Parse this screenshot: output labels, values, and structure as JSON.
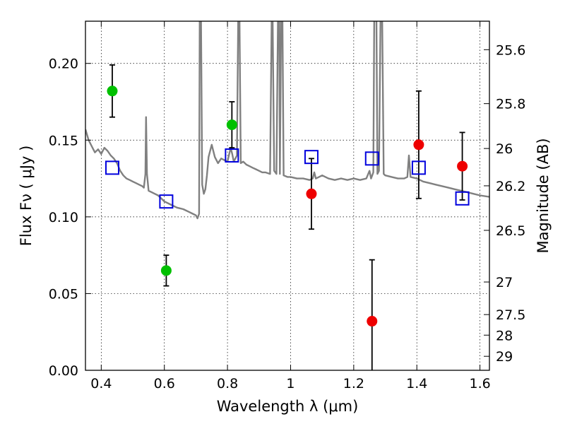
{
  "chart_data": {
    "type": "scatter",
    "title": "",
    "xlabel": "Wavelength  λ (μm)",
    "ylabel": "Flux  Fν  ( μJy )",
    "y2label": "Magnitude (AB)",
    "xlim": [
      0.35,
      1.63
    ],
    "ylim": [
      0.0,
      0.2275
    ],
    "grid": true,
    "x_ticks": [
      0.4,
      0.6,
      0.8,
      1.0,
      1.2,
      1.4,
      1.6
    ],
    "x_tick_labels": [
      "0.4",
      "0.6",
      "0.8",
      "1",
      "1.2",
      "1.4",
      "1.6"
    ],
    "y_ticks": [
      0.0,
      0.05,
      0.1,
      0.15,
      0.2
    ],
    "y_tick_labels": [
      "0.00",
      "0.05",
      "0.10",
      "0.15",
      "0.20"
    ],
    "y2_ticks": [
      25.6,
      25.8,
      26,
      26.2,
      26.5,
      27,
      27.5,
      28,
      29
    ],
    "y2_tick_labels": [
      "25.6",
      "25.8",
      "26",
      "26.2",
      "26.5",
      "27",
      "27.5",
      "28",
      "29"
    ],
    "series": [
      {
        "kind": "line",
        "color": "#808080",
        "points": [
          [
            0.35,
            0.157
          ],
          [
            0.36,
            0.15
          ],
          [
            0.37,
            0.146
          ],
          [
            0.38,
            0.142
          ],
          [
            0.39,
            0.144
          ],
          [
            0.4,
            0.141
          ],
          [
            0.41,
            0.145
          ],
          [
            0.42,
            0.143
          ],
          [
            0.43,
            0.14
          ],
          [
            0.44,
            0.138
          ],
          [
            0.45,
            0.135
          ],
          [
            0.46,
            0.13
          ],
          [
            0.47,
            0.127
          ],
          [
            0.48,
            0.125
          ],
          [
            0.49,
            0.124
          ],
          [
            0.5,
            0.123
          ],
          [
            0.51,
            0.122
          ],
          [
            0.52,
            0.121
          ],
          [
            0.53,
            0.12
          ],
          [
            0.535,
            0.119
          ],
          [
            0.54,
            0.128
          ],
          [
            0.542,
            0.165
          ],
          [
            0.545,
            0.128
          ],
          [
            0.55,
            0.117
          ],
          [
            0.56,
            0.116
          ],
          [
            0.57,
            0.115
          ],
          [
            0.58,
            0.114
          ],
          [
            0.59,
            0.112
          ],
          [
            0.6,
            0.11
          ],
          [
            0.62,
            0.108
          ],
          [
            0.64,
            0.106
          ],
          [
            0.66,
            0.105
          ],
          [
            0.68,
            0.103
          ],
          [
            0.69,
            0.102
          ],
          [
            0.7,
            0.101
          ],
          [
            0.705,
            0.099
          ],
          [
            0.71,
            0.102
          ],
          [
            0.712,
            0.23
          ],
          [
            0.716,
            0.23
          ],
          [
            0.72,
            0.121
          ],
          [
            0.725,
            0.115
          ],
          [
            0.73,
            0.118
          ],
          [
            0.735,
            0.127
          ],
          [
            0.74,
            0.139
          ],
          [
            0.75,
            0.147
          ],
          [
            0.76,
            0.139
          ],
          [
            0.77,
            0.135
          ],
          [
            0.78,
            0.138
          ],
          [
            0.79,
            0.137
          ],
          [
            0.8,
            0.136
          ],
          [
            0.81,
            0.145
          ],
          [
            0.815,
            0.141
          ],
          [
            0.82,
            0.136
          ],
          [
            0.83,
            0.14
          ],
          [
            0.834,
            0.23
          ],
          [
            0.838,
            0.23
          ],
          [
            0.842,
            0.135
          ],
          [
            0.85,
            0.136
          ],
          [
            0.86,
            0.134
          ],
          [
            0.87,
            0.133
          ],
          [
            0.88,
            0.132
          ],
          [
            0.89,
            0.131
          ],
          [
            0.9,
            0.13
          ],
          [
            0.91,
            0.129
          ],
          [
            0.92,
            0.129
          ],
          [
            0.935,
            0.128
          ],
          [
            0.94,
            0.23
          ],
          [
            0.943,
            0.23
          ],
          [
            0.948,
            0.13
          ],
          [
            0.955,
            0.128
          ],
          [
            0.96,
            0.23
          ],
          [
            0.964,
            0.23
          ],
          [
            0.966,
            0.128
          ],
          [
            0.97,
            0.23
          ],
          [
            0.974,
            0.23
          ],
          [
            0.978,
            0.127
          ],
          [
            0.99,
            0.126
          ],
          [
            1.0,
            0.126
          ],
          [
            1.02,
            0.125
          ],
          [
            1.04,
            0.125
          ],
          [
            1.06,
            0.124
          ],
          [
            1.07,
            0.125
          ],
          [
            1.075,
            0.129
          ],
          [
            1.08,
            0.125
          ],
          [
            1.09,
            0.126
          ],
          [
            1.1,
            0.127
          ],
          [
            1.12,
            0.125
          ],
          [
            1.14,
            0.124
          ],
          [
            1.16,
            0.125
          ],
          [
            1.18,
            0.124
          ],
          [
            1.2,
            0.125
          ],
          [
            1.22,
            0.124
          ],
          [
            1.24,
            0.125
          ],
          [
            1.25,
            0.13
          ],
          [
            1.255,
            0.125
          ],
          [
            1.262,
            0.129
          ],
          [
            1.265,
            0.23
          ],
          [
            1.272,
            0.23
          ],
          [
            1.275,
            0.128
          ],
          [
            1.28,
            0.13
          ],
          [
            1.285,
            0.23
          ],
          [
            1.29,
            0.23
          ],
          [
            1.295,
            0.128
          ],
          [
            1.3,
            0.127
          ],
          [
            1.32,
            0.126
          ],
          [
            1.34,
            0.125
          ],
          [
            1.36,
            0.125
          ],
          [
            1.37,
            0.126
          ],
          [
            1.375,
            0.14
          ],
          [
            1.38,
            0.126
          ],
          [
            1.4,
            0.125
          ],
          [
            1.42,
            0.123
          ],
          [
            1.44,
            0.122
          ],
          [
            1.46,
            0.121
          ],
          [
            1.48,
            0.12
          ],
          [
            1.5,
            0.119
          ],
          [
            1.52,
            0.118
          ],
          [
            1.54,
            0.117
          ],
          [
            1.56,
            0.116
          ],
          [
            1.58,
            0.115
          ],
          [
            1.6,
            0.114
          ],
          [
            1.63,
            0.113
          ]
        ]
      },
      {
        "kind": "points",
        "marker": "circle",
        "color": "#00c000",
        "points": [
          {
            "x": 0.435,
            "y": 0.182,
            "err": 0.017
          },
          {
            "x": 0.606,
            "y": 0.065,
            "err": 0.01
          },
          {
            "x": 0.814,
            "y": 0.16,
            "err": 0.015
          }
        ]
      },
      {
        "kind": "points",
        "marker": "circle",
        "color": "#ee0000",
        "points": [
          {
            "x": 1.066,
            "y": 0.115,
            "err": 0.023
          },
          {
            "x": 1.258,
            "y": 0.032,
            "err": 0.04
          },
          {
            "x": 1.406,
            "y": 0.147,
            "err": 0.035
          },
          {
            "x": 1.544,
            "y": 0.133,
            "err": 0.022
          }
        ]
      },
      {
        "kind": "points",
        "marker": "square-open",
        "color": "#0000dd",
        "points": [
          {
            "x": 0.435,
            "y": 0.132
          },
          {
            "x": 0.606,
            "y": 0.11
          },
          {
            "x": 0.814,
            "y": 0.14
          },
          {
            "x": 1.066,
            "y": 0.139
          },
          {
            "x": 1.258,
            "y": 0.138
          },
          {
            "x": 1.406,
            "y": 0.132
          },
          {
            "x": 1.544,
            "y": 0.112
          }
        ]
      }
    ]
  }
}
